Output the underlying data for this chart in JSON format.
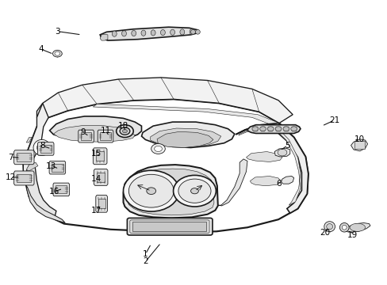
{
  "bg_color": "#ffffff",
  "line_color": "#1a1a1a",
  "label_color": "#000000",
  "lw_main": 1.2,
  "lw_detail": 0.6,
  "lw_thin": 0.4,
  "figsize": [
    4.89,
    3.6
  ],
  "dpi": 100,
  "label_positions": {
    "1": [
      0.375,
      0.108,
      0.39,
      0.145
    ],
    "2": [
      0.375,
      0.082,
      0.415,
      0.148
    ],
    "3": [
      0.148,
      0.89,
      0.21,
      0.878
    ],
    "4": [
      0.105,
      0.828,
      0.138,
      0.81
    ],
    "5": [
      0.742,
      0.49,
      0.722,
      0.472
    ],
    "6": [
      0.718,
      0.356,
      0.73,
      0.368
    ],
    "7": [
      0.028,
      0.448,
      0.052,
      0.448
    ],
    "8": [
      0.11,
      0.488,
      0.132,
      0.478
    ],
    "9": [
      0.215,
      0.535,
      0.23,
      0.522
    ],
    "10": [
      0.928,
      0.51,
      0.918,
      0.51
    ],
    "11": [
      0.272,
      0.542,
      0.282,
      0.522
    ],
    "12": [
      0.028,
      0.378,
      0.052,
      0.378
    ],
    "13": [
      0.132,
      0.418,
      0.152,
      0.408
    ],
    "14": [
      0.248,
      0.372,
      0.258,
      0.38
    ],
    "15": [
      0.248,
      0.462,
      0.26,
      0.45
    ],
    "16": [
      0.14,
      0.328,
      0.162,
      0.338
    ],
    "17": [
      0.248,
      0.262,
      0.258,
      0.282
    ],
    "18": [
      0.318,
      0.558,
      0.322,
      0.545
    ],
    "19": [
      0.908,
      0.175,
      0.905,
      0.195
    ],
    "20": [
      0.838,
      0.182,
      0.848,
      0.202
    ],
    "21": [
      0.862,
      0.578,
      0.83,
      0.558
    ]
  }
}
